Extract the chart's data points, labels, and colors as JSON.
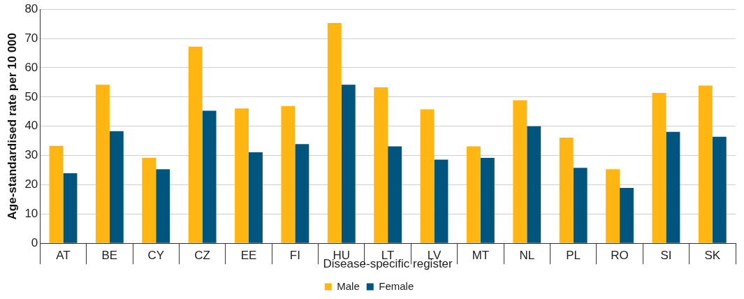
{
  "chart_data": {
    "type": "bar",
    "xlabel": "Disease-specific register",
    "ylabel": "Age-standardised rate per 10 000",
    "categories": [
      "AT",
      "BE",
      "CY",
      "CZ",
      "EE",
      "FI",
      "HU",
      "LT",
      "LV",
      "MT",
      "NL",
      "PL",
      "RO",
      "SI",
      "SK"
    ],
    "series": [
      {
        "name": "Male",
        "color": "#ffb612",
        "values": [
          33.3,
          54.2,
          29.2,
          67.2,
          46.1,
          46.9,
          75.3,
          53.3,
          45.8,
          33.1,
          48.9,
          36.1,
          25.3,
          51.4,
          53.9
        ]
      },
      {
        "name": "Female",
        "color": "#00557f",
        "values": [
          23.9,
          38.3,
          25.3,
          45.3,
          31.1,
          33.9,
          54.2,
          33.1,
          28.6,
          29.2,
          40,
          25.8,
          18.9,
          38.1,
          36.4
        ]
      }
    ],
    "ylim": [
      0,
      80
    ],
    "yticks": [
      0,
      10,
      20,
      30,
      40,
      50,
      60,
      70,
      80
    ],
    "grid": "y",
    "legend": "bottom"
  }
}
